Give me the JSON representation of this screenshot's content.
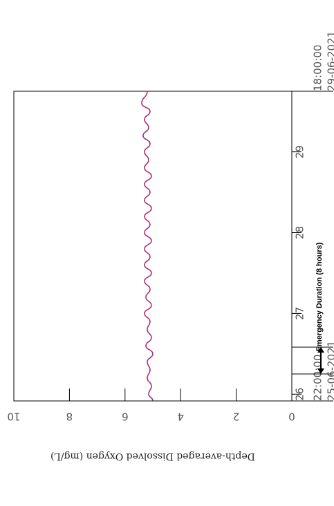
{
  "chart_data": {
    "type": "line",
    "orientation": "rotated-90-clockwise",
    "ylabel": "Depth-averaged Dissolved Oxygen (mg/L)",
    "ylim": [
      0,
      10
    ],
    "y_ticks": [
      "0",
      "2",
      "4",
      "6",
      "8",
      "10"
    ],
    "xlim_days": [
      25.9167,
      29.75
    ],
    "x_start_label": {
      "time": "22:00:00",
      "date": "25-06-2021"
    },
    "x_end_label": {
      "time": "18:00:00",
      "date": "29-06-2021"
    },
    "x_ticks": [
      "26",
      "27",
      "28",
      "29"
    ],
    "series": [
      {
        "color": "#ff2020",
        "style": "solid",
        "x": [
          25.92,
          26.0,
          26.1,
          26.2,
          26.3,
          26.4,
          26.5,
          26.6,
          26.7,
          26.8,
          26.9,
          27.0,
          27.1,
          27.2,
          27.3,
          27.4,
          27.5,
          27.6,
          27.7,
          27.8,
          27.9,
          28.0,
          28.1,
          28.2,
          28.3,
          28.4,
          28.5,
          28.6,
          28.7,
          28.8,
          28.9,
          29.0,
          29.1,
          29.2,
          29.3,
          29.4,
          29.5,
          29.6,
          29.75
        ],
        "values": [
          5.0,
          5.15,
          5.05,
          5.2,
          5.1,
          5.2,
          5.0,
          5.25,
          5.05,
          5.2,
          5.1,
          5.3,
          5.05,
          5.25,
          5.1,
          5.3,
          5.05,
          5.3,
          5.1,
          5.3,
          5.05,
          5.3,
          5.1,
          5.3,
          5.05,
          5.3,
          5.1,
          5.3,
          5.05,
          5.3,
          5.15,
          5.3,
          5.1,
          5.35,
          5.15,
          5.3,
          5.1,
          5.4,
          5.2
        ]
      },
      {
        "color": "#3050ff",
        "style": "dashed",
        "x": [
          25.92,
          26.0,
          26.1,
          26.2,
          26.3,
          26.4,
          26.5,
          26.6,
          26.7,
          26.8,
          26.9,
          27.0,
          27.1,
          27.2,
          27.3,
          27.4,
          27.5,
          27.6,
          27.7,
          27.8,
          27.9,
          28.0,
          28.1,
          28.2,
          28.3,
          28.4,
          28.5,
          28.6,
          28.7,
          28.8,
          28.9,
          29.0,
          29.1,
          29.2,
          29.3,
          29.4,
          29.5,
          29.6,
          29.75
        ],
        "values": [
          5.0,
          5.15,
          5.05,
          5.2,
          5.1,
          5.2,
          5.0,
          5.25,
          5.05,
          5.2,
          5.1,
          5.3,
          5.05,
          5.25,
          5.1,
          5.3,
          5.05,
          5.3,
          5.1,
          5.3,
          5.05,
          5.3,
          5.1,
          5.3,
          5.05,
          5.3,
          5.1,
          5.3,
          5.05,
          5.3,
          5.15,
          5.3,
          5.1,
          5.35,
          5.15,
          5.3,
          5.1,
          5.4,
          5.2
        ]
      }
    ],
    "annotation": {
      "text": "Emergency Duration (8 hours)",
      "x_start_day": 26.25,
      "x_end_day": 26.5833
    },
    "grid": false
  }
}
